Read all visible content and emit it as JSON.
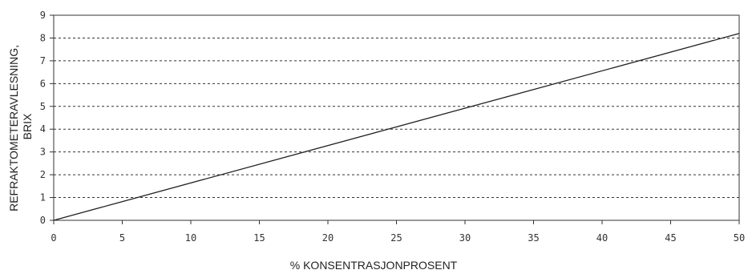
{
  "chart_data": {
    "type": "line",
    "title": "",
    "xlabel": "% KONSENTRASJONPROSENT",
    "ylabel_lines": [
      "REFRAKTOMETERAVLESNING,",
      "BRIX"
    ],
    "xlim": [
      0,
      50
    ],
    "ylim": [
      0,
      9
    ],
    "xticks": [
      0,
      5,
      10,
      15,
      20,
      25,
      30,
      35,
      40,
      45,
      50
    ],
    "yticks": [
      0,
      1,
      2,
      3,
      4,
      5,
      6,
      7,
      8,
      9
    ],
    "grid": "horizontal-dashed",
    "series": [
      {
        "x": [
          0,
          50
        ],
        "y": [
          0,
          8.2
        ]
      }
    ],
    "colors": {
      "line": "#222222",
      "grid": "#333333",
      "text": "#333333"
    }
  }
}
